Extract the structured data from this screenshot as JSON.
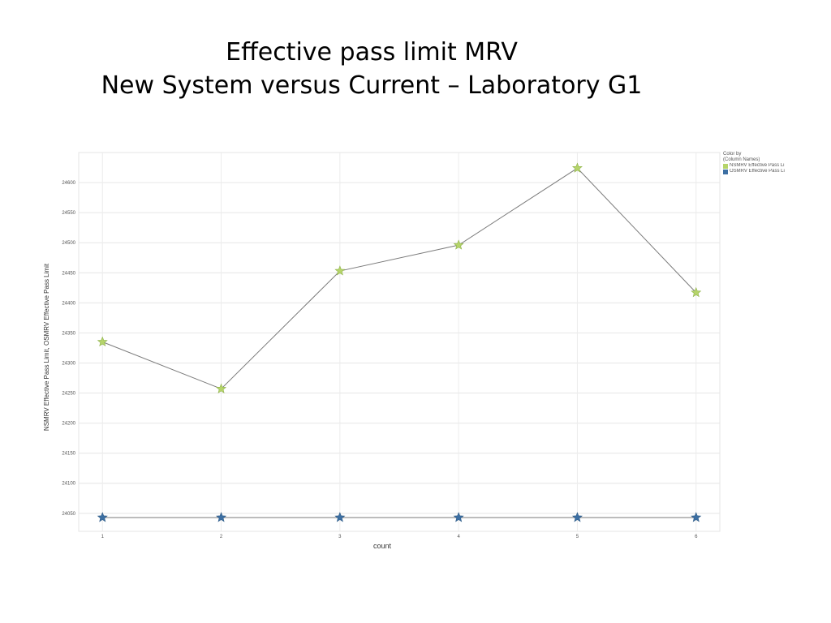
{
  "slide": {
    "title_line1": "Effective pass limit MRV",
    "title_line2": "New System versus Current – Laboratory G1"
  },
  "legend": {
    "heading": "Color by",
    "subheading": "(Column Names)",
    "items": [
      {
        "label": "NSMRV Effective Pass Li",
        "color": "#b5d46a"
      },
      {
        "label": "OSMRV Effective Pass Li",
        "color": "#3c6fa3"
      }
    ]
  },
  "chart_data": {
    "type": "line",
    "x": [
      1,
      2,
      3,
      4,
      5,
      6
    ],
    "xlabel": "count",
    "ylabel": "NSMRV Effective Pass Limit, OSMRV Effective Pass Limit",
    "xlim": [
      0.8,
      6.2
    ],
    "ylim": [
      24020,
      24650
    ],
    "yticks": [
      24050,
      24100,
      24150,
      24200,
      24250,
      24300,
      24350,
      24400,
      24450,
      24500,
      24550,
      24600
    ],
    "grid": true,
    "legend_position": "top-right",
    "series": [
      {
        "name": "NSMRV Effective Pass Li",
        "values": [
          24335,
          24257,
          24453,
          24496,
          24624,
          24417
        ],
        "color": "#b5d46a",
        "marker": "star"
      },
      {
        "name": "OSMRV Effective Pass Li",
        "values": [
          24043,
          24043,
          24043,
          24043,
          24043,
          24043
        ],
        "color": "#3c6fa3",
        "marker": "star"
      }
    ]
  }
}
